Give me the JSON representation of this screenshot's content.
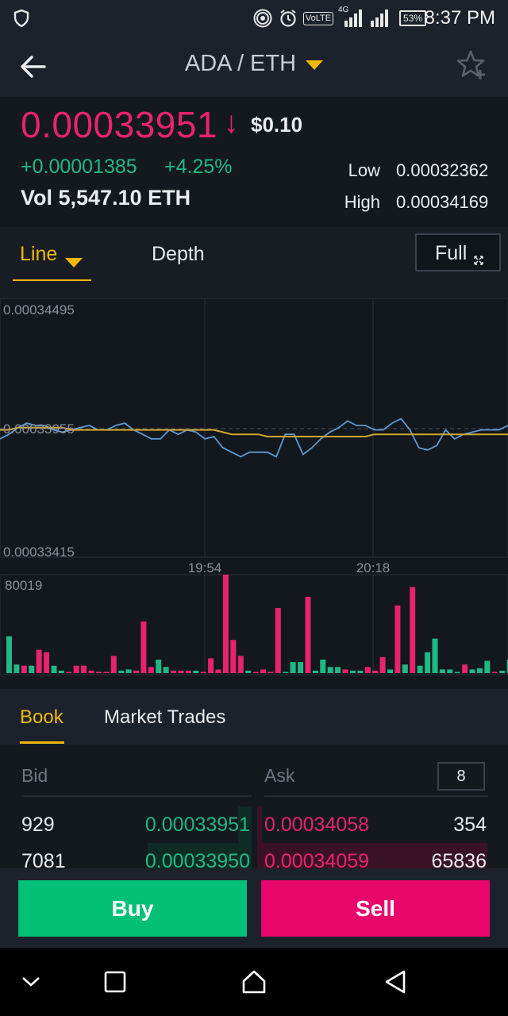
{
  "status_bar": {
    "time": "8:37 PM",
    "battery": "53%",
    "volte": "VoLTE",
    "network": "4G",
    "icons": [
      "shield-icon",
      "hotspot-icon",
      "alarm-icon",
      "volte-icon",
      "signal-4g-icon",
      "signal-icon",
      "battery-icon"
    ]
  },
  "header": {
    "title": "ADA / ETH",
    "back_icon": "back-arrow-icon",
    "dropdown_icon": "caret-down-icon",
    "favorite_icon": "star-plus-icon"
  },
  "ticker": {
    "price": "0.00033951",
    "direction_icon": "arrow-down-icon",
    "usd": "$0.10",
    "change": "+0.00001385",
    "change_pct": "+4.25%",
    "volume": "Vol 5,547.10 ETH",
    "low_label": "Low",
    "low_value": "0.00032362",
    "high_label": "High",
    "high_value": "0.00034169"
  },
  "chart_tabs": {
    "line": "Line",
    "depth": "Depth",
    "full": "Full"
  },
  "chart_data": {
    "type": "line",
    "y_labels": [
      "0.00034495",
      "0.00033955",
      "0.00033415"
    ],
    "ylim": [
      0.00033415,
      0.00034495
    ],
    "x_labels": [
      "19:54",
      "20:18"
    ],
    "volume_max_label": "80019",
    "series": [
      {
        "role": "price",
        "color": "#5b9bd5",
        "values": [
          0.0003392,
          0.0003394,
          0.0003397,
          0.0003399,
          0.0003398,
          0.0003398,
          0.0003396,
          0.0003395,
          0.0003396,
          0.0003397,
          0.0003398,
          0.0003396,
          0.0003396,
          0.0003398,
          0.0003399,
          0.0003396,
          0.0003394,
          0.0003392,
          0.0003392,
          0.0003396,
          0.0003394,
          0.0003396,
          0.0003395,
          0.0003392,
          0.0003393,
          0.0003388,
          0.0003386,
          0.0003384,
          0.0003386,
          0.0003386,
          0.0003386,
          0.0003384,
          0.0003394,
          0.0003394,
          0.0003385,
          0.0003388,
          0.0003392,
          0.0003395,
          0.0003397,
          0.00034,
          0.0003398,
          0.0003398,
          0.0003396,
          0.0003396,
          0.0003399,
          0.0003401,
          0.0003396,
          0.0003388,
          0.0003387,
          0.0003389,
          0.0003396,
          0.0003392,
          0.0003394,
          0.0003395,
          0.0003396,
          0.0003396,
          0.0003396,
          0.0003398
        ]
      },
      {
        "role": "moving-average",
        "color": "#d4a72c",
        "values": [
          0.0003396,
          0.0003396,
          0.0003397,
          0.0003397,
          0.0003397,
          0.0003397,
          0.0003397,
          0.0003397,
          0.0003396,
          0.0003396,
          0.0003396,
          0.0003396,
          0.0003396,
          0.0003396,
          0.0003396,
          0.0003396,
          0.0003396,
          0.0003396,
          0.0003396,
          0.0003396,
          0.0003396,
          0.0003396,
          0.0003396,
          0.0003396,
          0.0003396,
          0.0003395,
          0.0003394,
          0.0003394,
          0.0003394,
          0.0003394,
          0.0003393,
          0.0003393,
          0.0003393,
          0.0003393,
          0.0003393,
          0.0003393,
          0.0003393,
          0.0003393,
          0.0003393,
          0.0003393,
          0.0003393,
          0.0003393,
          0.0003394,
          0.0003394,
          0.0003394,
          0.0003394,
          0.0003394,
          0.0003394,
          0.0003394,
          0.0003394,
          0.0003394,
          0.0003394,
          0.0003394,
          0.0003394,
          0.0003394,
          0.0003394,
          0.0003394,
          0.0003394
        ]
      }
    ],
    "volume_bars": [
      {
        "v": 30000,
        "c": "pos"
      },
      {
        "v": 7000,
        "c": "pos"
      },
      {
        "v": 6000,
        "c": "neg"
      },
      {
        "v": 6000,
        "c": "pos"
      },
      {
        "v": 19000,
        "c": "neg"
      },
      {
        "v": 17000,
        "c": "neg"
      },
      {
        "v": 6000,
        "c": "pos"
      },
      {
        "v": 2000,
        "c": "pos"
      },
      {
        "v": 1000,
        "c": "neg"
      },
      {
        "v": 6000,
        "c": "neg"
      },
      {
        "v": 6000,
        "c": "neg"
      },
      {
        "v": 2000,
        "c": "neg"
      },
      {
        "v": 1000,
        "c": "neg"
      },
      {
        "v": 1000,
        "c": "neg"
      },
      {
        "v": 14000,
        "c": "neg"
      },
      {
        "v": 2000,
        "c": "pos"
      },
      {
        "v": 3000,
        "c": "pos"
      },
      {
        "v": 2000,
        "c": "neg"
      },
      {
        "v": 42000,
        "c": "neg"
      },
      {
        "v": 5000,
        "c": "neg"
      },
      {
        "v": 11000,
        "c": "pos"
      },
      {
        "v": 5000,
        "c": "pos"
      },
      {
        "v": 2000,
        "c": "neg"
      },
      {
        "v": 2000,
        "c": "neg"
      },
      {
        "v": 2000,
        "c": "neg"
      },
      {
        "v": 2000,
        "c": "pos"
      },
      {
        "v": 1000,
        "c": "neg"
      },
      {
        "v": 12000,
        "c": "neg"
      },
      {
        "v": 3000,
        "c": "neg"
      },
      {
        "v": 80019,
        "c": "neg"
      },
      {
        "v": 27000,
        "c": "neg"
      },
      {
        "v": 14000,
        "c": "neg"
      },
      {
        "v": 2000,
        "c": "pos"
      },
      {
        "v": 1000,
        "c": "neg"
      },
      {
        "v": 3000,
        "c": "neg"
      },
      {
        "v": 1000,
        "c": "neg"
      },
      {
        "v": 53000,
        "c": "neg"
      },
      {
        "v": 1000,
        "c": "pos"
      },
      {
        "v": 9000,
        "c": "pos"
      },
      {
        "v": 9000,
        "c": "pos"
      },
      {
        "v": 62000,
        "c": "neg"
      },
      {
        "v": 2000,
        "c": "pos"
      },
      {
        "v": 11000,
        "c": "pos"
      },
      {
        "v": 5000,
        "c": "pos"
      },
      {
        "v": 5000,
        "c": "pos"
      },
      {
        "v": 3000,
        "c": "neg"
      },
      {
        "v": 2000,
        "c": "pos"
      },
      {
        "v": 2000,
        "c": "pos"
      },
      {
        "v": 5000,
        "c": "neg"
      },
      {
        "v": 2000,
        "c": "neg"
      },
      {
        "v": 13000,
        "c": "neg"
      },
      {
        "v": 3000,
        "c": "pos"
      },
      {
        "v": 55000,
        "c": "neg"
      },
      {
        "v": 7000,
        "c": "pos"
      },
      {
        "v": 70000,
        "c": "neg"
      },
      {
        "v": 6000,
        "c": "pos"
      },
      {
        "v": 17000,
        "c": "pos"
      },
      {
        "v": 28000,
        "c": "pos"
      },
      {
        "v": 3000,
        "c": "pos"
      },
      {
        "v": 3000,
        "c": "pos"
      },
      {
        "v": 1000,
        "c": "pos"
      },
      {
        "v": 7000,
        "c": "neg"
      },
      {
        "v": 3000,
        "c": "pos"
      },
      {
        "v": 4000,
        "c": "pos"
      },
      {
        "v": 10000,
        "c": "pos"
      },
      {
        "v": 1000,
        "c": "neg"
      },
      {
        "v": 2000,
        "c": "pos"
      },
      {
        "v": 11000,
        "c": "pos"
      }
    ]
  },
  "book": {
    "tab_book": "Book",
    "tab_trades": "Market Trades",
    "bid_header": "Bid",
    "ask_header": "Ask",
    "depth_value": "8",
    "rows": [
      {
        "bid_qty": "929",
        "bid_price": "0.00033951",
        "ask_price": "0.00034058",
        "ask_qty": "354",
        "bid_depth": 0.06,
        "ask_depth": 0.02
      },
      {
        "bid_qty": "7081",
        "bid_price": "0.00033950",
        "ask_price": "0.00034059",
        "ask_qty": "65836",
        "bid_depth": 0.45,
        "ask_depth": 1.0
      }
    ]
  },
  "actions": {
    "buy": "Buy",
    "sell": "Sell"
  },
  "colors": {
    "positive": "#1fb985",
    "negative": "#e8236d",
    "accent": "#f0b90b",
    "buy": "#02c076",
    "sell": "#e8066d"
  }
}
